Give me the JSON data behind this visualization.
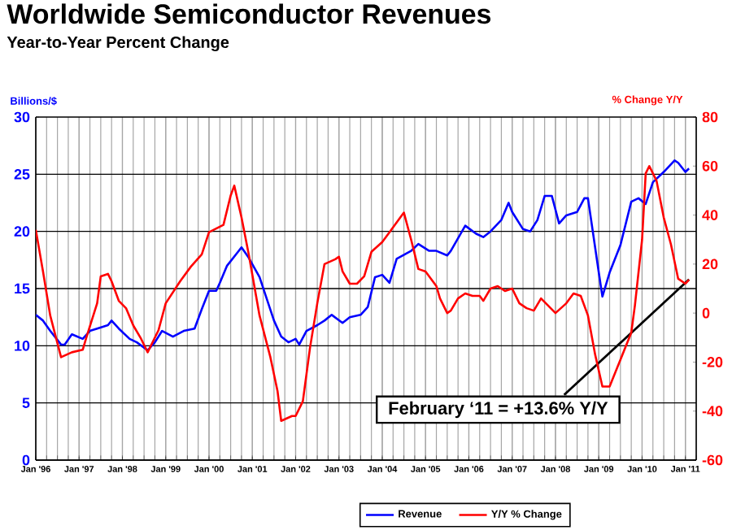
{
  "chart_data": {
    "type": "line",
    "title": "Worldwide Semiconductor Revenues",
    "subtitle": "Year-to-Year Percent Change",
    "ylabel": "Billions/$",
    "y2label": "% Change Y/Y",
    "xlim": [
      "1996-01",
      "2011-04"
    ],
    "xticks": [
      {
        "value": "1996-01",
        "label": "Jan '96"
      },
      {
        "value": "1997-01",
        "label": "Jan '97"
      },
      {
        "value": "1998-01",
        "label": "Jan '98"
      },
      {
        "value": "1999-01",
        "label": "Jan '99"
      },
      {
        "value": "2000-01",
        "label": "Jan '00"
      },
      {
        "value": "2001-01",
        "label": "Jan '01"
      },
      {
        "value": "2002-01",
        "label": "Jan '02"
      },
      {
        "value": "2003-01",
        "label": "Jan '03"
      },
      {
        "value": "2004-01",
        "label": "Jan '04"
      },
      {
        "value": "2005-01",
        "label": "Jan '05"
      },
      {
        "value": "2006-01",
        "label": "Jan '06"
      },
      {
        "value": "2007-01",
        "label": "Jan '07"
      },
      {
        "value": "2008-01",
        "label": "Jan '08"
      },
      {
        "value": "2009-01",
        "label": "Jan '09"
      },
      {
        "value": "2010-01",
        "label": "Jan '10"
      },
      {
        "value": "2011-01",
        "label": "Jan '11"
      }
    ],
    "ylim": [
      0,
      30
    ],
    "yticks": [
      0,
      5,
      10,
      15,
      20,
      25,
      30
    ],
    "y2lim": [
      -60,
      80
    ],
    "y2ticks": [
      -60,
      -40,
      -20,
      0,
      20,
      40,
      60,
      80
    ],
    "grid": true,
    "legend": "bottom",
    "annotations": [
      {
        "text": "February ‘11 = +13.6% Y/Y",
        "x": "2011-02",
        "y": 15.8
      }
    ],
    "series": [
      {
        "name": "Revenue",
        "color": "#0000ff",
        "x": [
          "1996-01",
          "1996-03",
          "1996-05",
          "1996-08",
          "1996-09",
          "1996-11",
          "1997-02",
          "1997-04",
          "1997-06",
          "1997-09",
          "1997-10",
          "1997-12",
          "1998-03",
          "1998-05",
          "1998-08",
          "1998-10",
          "1998-12",
          "1999-03",
          "1999-06",
          "1999-09",
          "1999-11",
          "2000-01",
          "2000-03",
          "2000-04",
          "2000-06",
          "2000-09",
          "2000-10",
          "2000-12",
          "2001-03",
          "2001-05",
          "2001-07",
          "2001-09",
          "2001-11",
          "2002-01",
          "2002-02",
          "2002-04",
          "2002-07",
          "2002-09",
          "2002-11",
          "2003-02",
          "2003-04",
          "2003-07",
          "2003-09",
          "2003-11",
          "2004-01",
          "2004-03",
          "2004-05",
          "2004-09",
          "2004-11",
          "2005-02",
          "2005-04",
          "2005-07",
          "2005-08",
          "2005-12",
          "2006-03",
          "2006-05",
          "2006-07",
          "2006-10",
          "2006-12",
          "2007-01",
          "2007-04",
          "2007-06",
          "2007-08",
          "2007-10",
          "2007-12",
          "2008-02",
          "2008-04",
          "2008-07",
          "2008-09",
          "2008-10",
          "2009-01",
          "2009-02",
          "2009-04",
          "2009-07",
          "2009-10",
          "2009-12",
          "2010-02",
          "2010-04",
          "2010-07",
          "2010-10",
          "2010-11",
          "2011-01",
          "2011-02"
        ],
        "values": [
          12.7,
          12.2,
          11.3,
          10.1,
          10.1,
          11.0,
          10.6,
          11.3,
          11.5,
          11.8,
          12.2,
          11.5,
          10.6,
          10.3,
          9.6,
          10.3,
          11.3,
          10.8,
          11.3,
          11.5,
          13.2,
          14.8,
          14.8,
          15.5,
          17.0,
          18.2,
          18.6,
          17.7,
          16.0,
          14.1,
          12.2,
          10.8,
          10.3,
          10.6,
          10.1,
          11.3,
          11.8,
          12.2,
          12.7,
          12.0,
          12.5,
          12.7,
          13.4,
          16.0,
          16.2,
          15.5,
          17.6,
          18.3,
          18.9,
          18.3,
          18.3,
          17.9,
          18.3,
          20.5,
          19.8,
          19.5,
          20.0,
          21.0,
          22.5,
          21.7,
          20.2,
          20.0,
          21.0,
          23.1,
          23.1,
          20.7,
          21.4,
          21.7,
          22.9,
          22.9,
          16.4,
          14.3,
          16.4,
          18.8,
          22.6,
          22.9,
          22.4,
          24.3,
          25.2,
          26.2,
          26.0,
          25.2,
          25.5
        ]
      },
      {
        "name": "Y/Y % Change",
        "color": "#ff0000",
        "axis": "y2",
        "x": [
          "1996-01",
          "1996-03",
          "1996-05",
          "1996-08",
          "1996-11",
          "1997-02",
          "1997-03",
          "1997-06",
          "1997-07",
          "1997-09",
          "1997-10",
          "1997-12",
          "1998-02",
          "1998-04",
          "1998-06",
          "1998-08",
          "1998-11",
          "1999-01",
          "1999-05",
          "1999-08",
          "1999-11",
          "2000-01",
          "2000-05",
          "2000-07",
          "2000-08",
          "2000-10",
          "2000-12",
          "2001-03",
          "2001-06",
          "2001-08",
          "2001-09",
          "2001-12",
          "2002-01",
          "2002-03",
          "2002-05",
          "2002-07",
          "2002-09",
          "2002-12",
          "2003-01",
          "2003-02",
          "2003-04",
          "2003-06",
          "2003-08",
          "2003-10",
          "2004-01",
          "2004-03",
          "2004-06",
          "2004-07",
          "2004-09",
          "2004-11",
          "2005-01",
          "2005-04",
          "2005-05",
          "2005-07",
          "2005-08",
          "2005-10",
          "2005-12",
          "2006-02",
          "2006-04",
          "2006-05",
          "2006-07",
          "2006-09",
          "2006-11",
          "2007-01",
          "2007-03",
          "2007-05",
          "2007-07",
          "2007-09",
          "2007-11",
          "2008-01",
          "2008-04",
          "2008-06",
          "2008-08",
          "2008-10",
          "2008-12",
          "2009-02",
          "2009-04",
          "2009-07",
          "2009-10",
          "2009-11",
          "2010-01",
          "2010-02",
          "2010-03",
          "2010-05",
          "2010-07",
          "2010-09",
          "2010-11",
          "2011-01",
          "2011-02"
        ],
        "values": [
          34,
          17,
          -1,
          -18,
          -16,
          -15,
          -10,
          4,
          15,
          16,
          13,
          5,
          2,
          -5,
          -10,
          -16,
          -7,
          4,
          13,
          19,
          24,
          33,
          36,
          48,
          52,
          39,
          24,
          -1,
          -18,
          -32,
          -44,
          -42,
          -42,
          -36,
          -14,
          4,
          20,
          22,
          23,
          17,
          12,
          12,
          15,
          25,
          29,
          33,
          39,
          41,
          30,
          18,
          17,
          11,
          6,
          0,
          1,
          6,
          8,
          7,
          7,
          5,
          10,
          11,
          9,
          10,
          4,
          2,
          1,
          6,
          3,
          0,
          4,
          8,
          7,
          -1,
          -17,
          -30,
          -30,
          -19,
          -8,
          3,
          30,
          57,
          60,
          54,
          39,
          28,
          14,
          12,
          13.6
        ]
      }
    ]
  }
}
